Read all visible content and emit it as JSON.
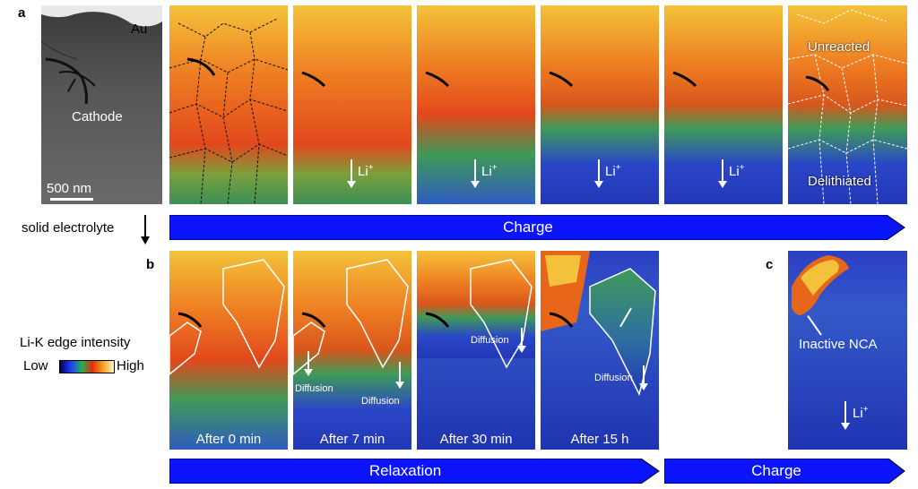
{
  "panel_letters": {
    "a": "a",
    "b": "b",
    "c": "c"
  },
  "panel_a": {
    "sem_labels": {
      "au": "Au",
      "cathode": "Cathode",
      "scale_bar": "500 nm"
    },
    "li_label": "Li",
    "li_sup": "+",
    "unreacted": "Unreacted",
    "delithiated": "Delithiated",
    "banner": "Charge"
  },
  "solid_electrolyte": "solid electrolyte",
  "panel_b": {
    "captions": [
      "After 0 min",
      "After 7 min",
      "After 30 min",
      "After 15 h"
    ],
    "diffusion": "Diffusion",
    "banner": "Relaxation"
  },
  "panel_c": {
    "inactive_label": "Inactive NCA",
    "li_label": "Li",
    "li_sup": "+",
    "banner": "Charge"
  },
  "colorbar": {
    "title": "Li-K edge intensity",
    "low": "Low",
    "high": "High"
  },
  "colors": {
    "banner_blue": "#0a14ff",
    "map_blue": "#2a46c8",
    "map_green": "#3f9a58",
    "map_orange": "#e8661a",
    "map_yellow": "#f4c23a"
  }
}
